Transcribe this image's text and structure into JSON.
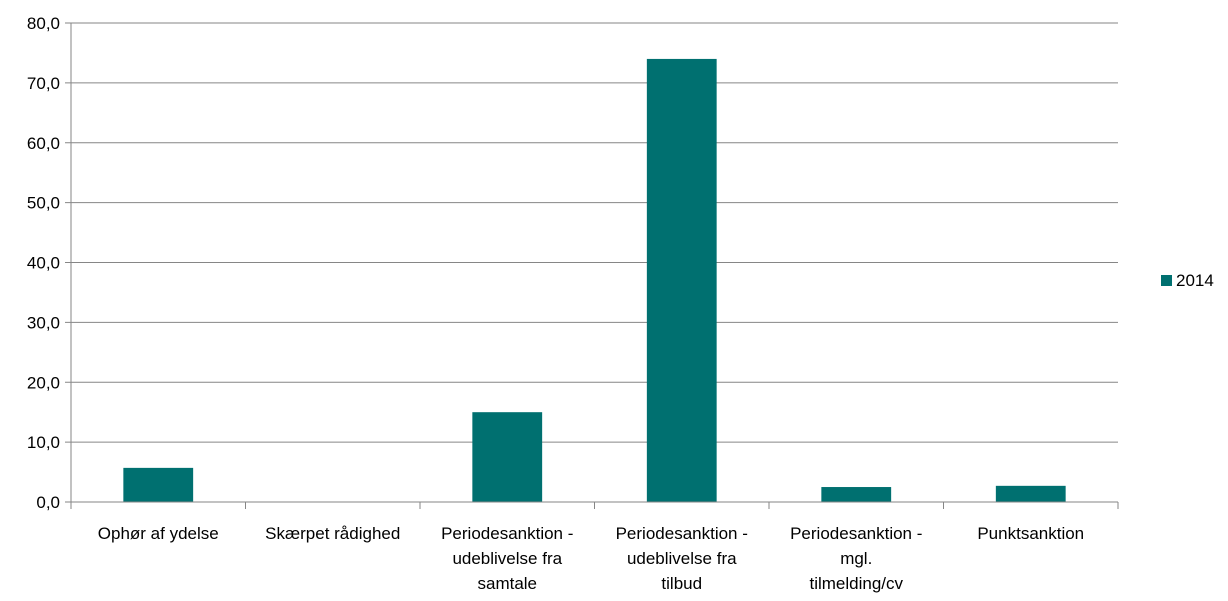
{
  "chart_data": {
    "type": "bar",
    "categories": [
      [
        "Ophør af ydelse"
      ],
      [
        "Skærpet rådighed"
      ],
      [
        "Periodesanktion -",
        "udeblivelse fra",
        "samtale"
      ],
      [
        "Periodesanktion -",
        "udeblivelse fra",
        "tilbud"
      ],
      [
        "Periodesanktion -",
        "mgl.",
        "tilmelding/cv"
      ],
      [
        "Punktsanktion"
      ]
    ],
    "series": [
      {
        "name": "2014",
        "values": [
          5.7,
          0.0,
          15.0,
          74.0,
          2.5,
          2.7
        ]
      }
    ],
    "yticks": [
      "0,0",
      "10,0",
      "20,0",
      "30,0",
      "40,0",
      "50,0",
      "60,0",
      "70,0",
      "80,0"
    ],
    "ylim": [
      0,
      80
    ],
    "grid": true,
    "legend_position": "right",
    "colors": {
      "bar": "#007070",
      "grid": "#868686",
      "axis": "#868686"
    }
  }
}
